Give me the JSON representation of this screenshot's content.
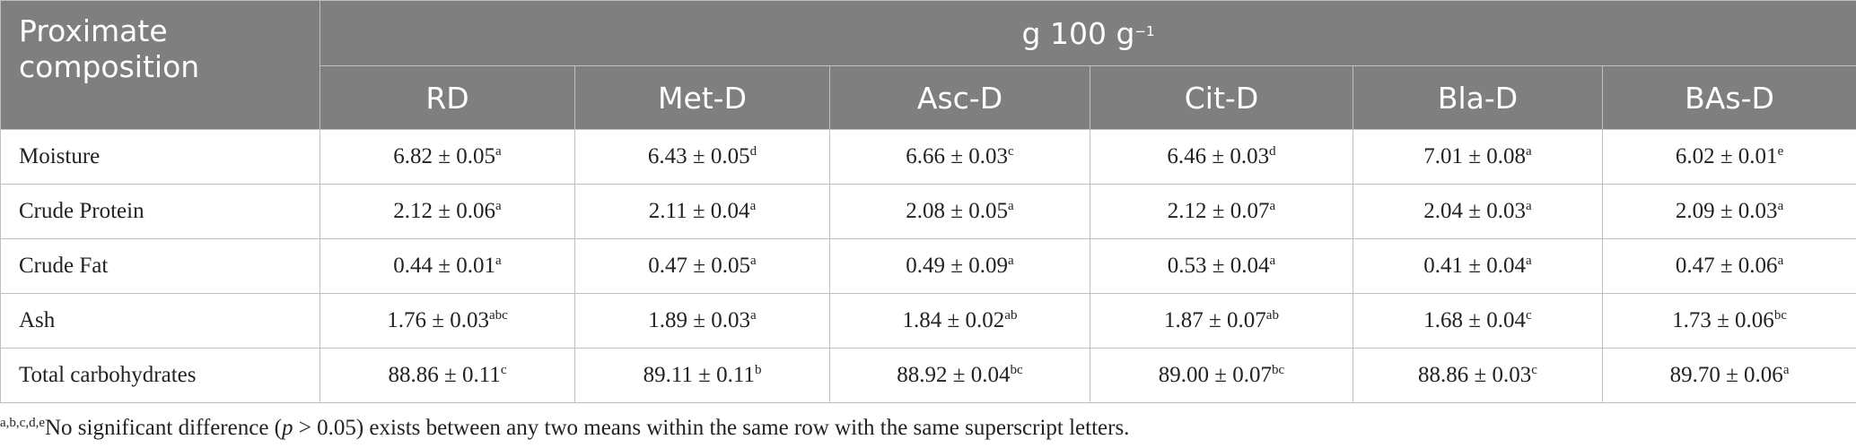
{
  "header": {
    "corner": "Proximate composition",
    "unit": "g 100 g",
    "unit_exponent": "−1",
    "columns": [
      "RD",
      "Met-D",
      "Asc-D",
      "Cit-D",
      "Bla-D",
      "BAs-D"
    ]
  },
  "table": {
    "rows": [
      {
        "name": "Moisture",
        "cells": [
          {
            "value": "6.82 ± 0.05",
            "sup": "a"
          },
          {
            "value": "6.43 ± 0.05",
            "sup": "d"
          },
          {
            "value": "6.66 ± 0.03",
            "sup": "c"
          },
          {
            "value": "6.46 ± 0.03",
            "sup": "d"
          },
          {
            "value": "7.01 ± 0.08",
            "sup": "a"
          },
          {
            "value": "6.02 ± 0.01",
            "sup": "e"
          }
        ]
      },
      {
        "name": "Crude Protein",
        "cells": [
          {
            "value": "2.12 ± 0.06",
            "sup": "a"
          },
          {
            "value": "2.11 ± 0.04",
            "sup": "a"
          },
          {
            "value": "2.08 ± 0.05",
            "sup": "a"
          },
          {
            "value": "2.12 ± 0.07",
            "sup": "a"
          },
          {
            "value": "2.04 ± 0.03",
            "sup": "a"
          },
          {
            "value": "2.09 ± 0.03",
            "sup": "a"
          }
        ]
      },
      {
        "name": "Crude Fat",
        "cells": [
          {
            "value": "0.44 ± 0.01",
            "sup": "a"
          },
          {
            "value": "0.47 ± 0.05",
            "sup": "a"
          },
          {
            "value": "0.49 ± 0.09",
            "sup": "a"
          },
          {
            "value": "0.53 ± 0.04",
            "sup": "a"
          },
          {
            "value": "0.41 ± 0.04",
            "sup": "a"
          },
          {
            "value": "0.47 ± 0.06",
            "sup": "a"
          }
        ]
      },
      {
        "name": "Ash",
        "cells": [
          {
            "value": "1.76 ± 0.03",
            "sup": "abc"
          },
          {
            "value": "1.89 ± 0.03",
            "sup": "a"
          },
          {
            "value": "1.84 ± 0.02",
            "sup": "ab"
          },
          {
            "value": "1.87 ± 0.07",
            "sup": "ab"
          },
          {
            "value": "1.68 ± 0.04",
            "sup": "c"
          },
          {
            "value": "1.73 ± 0.06",
            "sup": "bc"
          }
        ]
      },
      {
        "name": "Total carbohydrates",
        "cells": [
          {
            "value": "88.86 ± 0.11",
            "sup": "c"
          },
          {
            "value": "89.11 ± 0.11",
            "sup": "b"
          },
          {
            "value": "88.92 ± 0.04",
            "sup": "bc"
          },
          {
            "value": "89.00 ± 0.07",
            "sup": "bc"
          },
          {
            "value": "88.86 ± 0.03",
            "sup": "c"
          },
          {
            "value": "89.70 ± 0.06",
            "sup": "a"
          }
        ]
      }
    ]
  },
  "footnote": {
    "superscript": "a,b,c,d,e",
    "text_before": "No significant difference (",
    "italic": "p",
    "text_after": " > 0.05) exists between any two means within the same row with the same superscript letters."
  }
}
